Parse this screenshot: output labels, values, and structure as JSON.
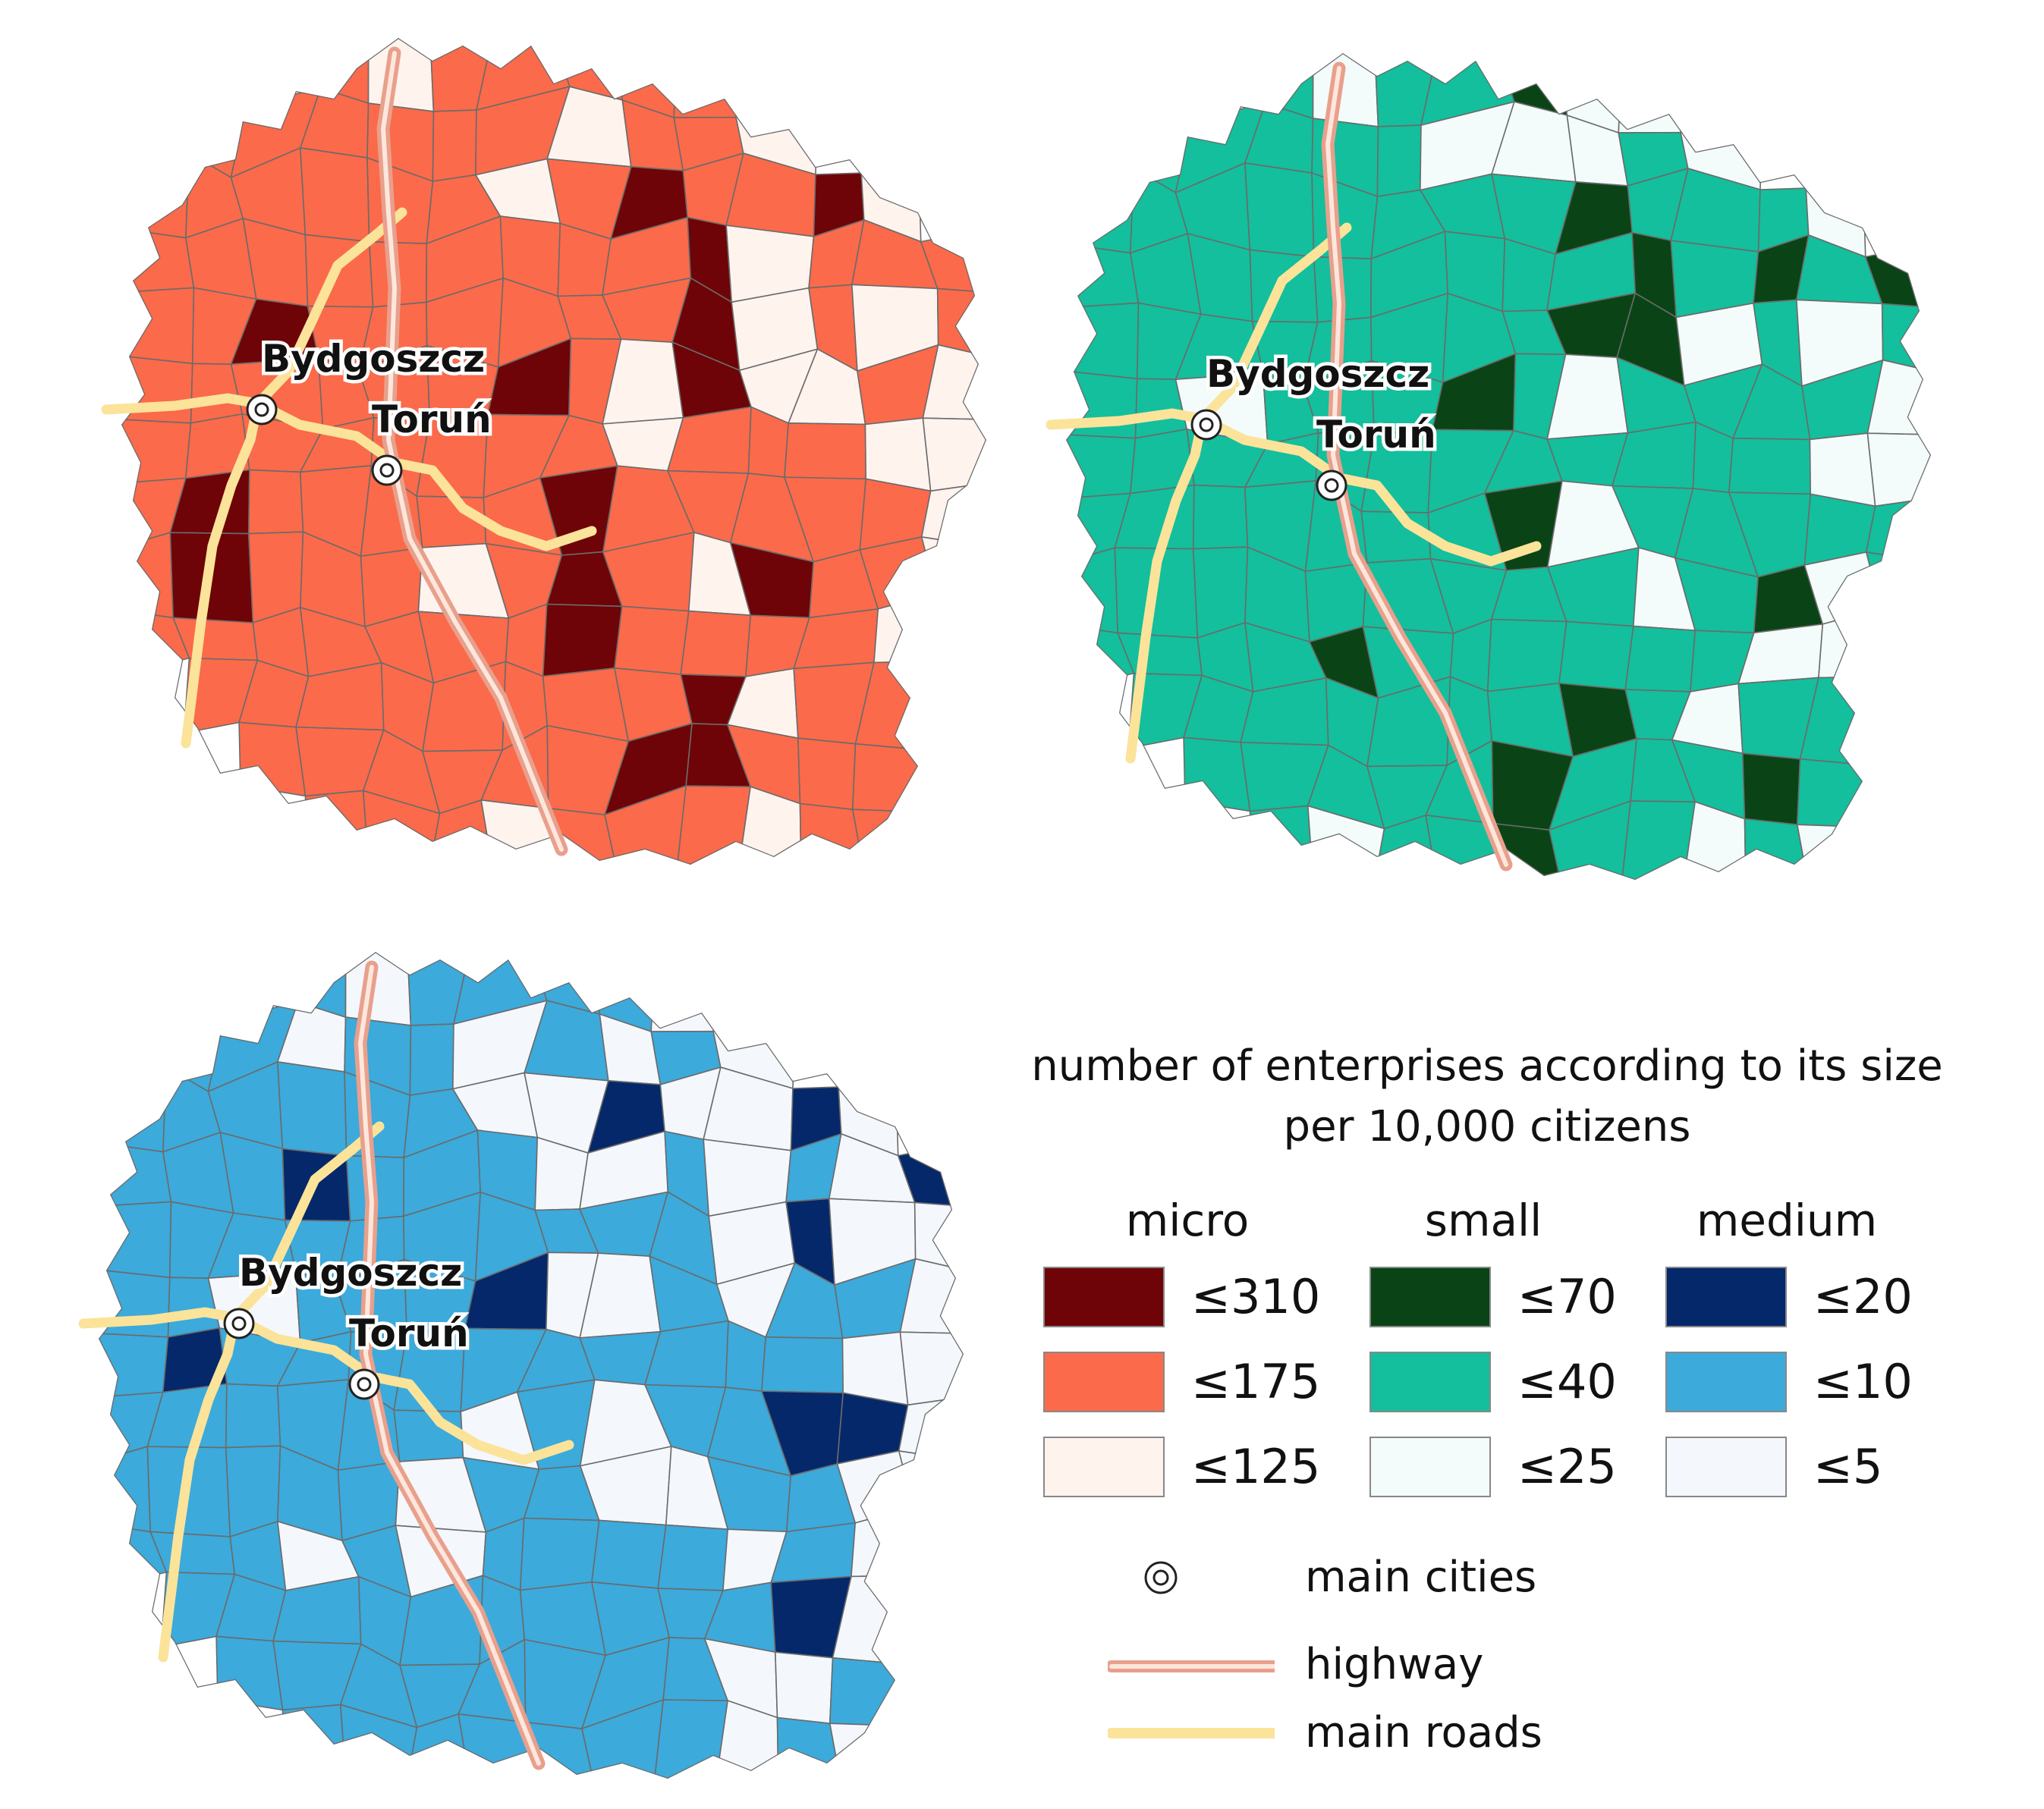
{
  "cities": [
    {
      "name": "Bydgoszcz"
    },
    {
      "name": "Toruń"
    }
  ],
  "maps": [
    {
      "category": "micro",
      "border": "#6b6b6b",
      "palette": {
        "high": "#6e0407",
        "mid": "#fb6a4a",
        "low": "#fff3ee"
      }
    },
    {
      "category": "small",
      "border": "#6b6b6b",
      "palette": {
        "high": "#0a4416",
        "mid": "#13bf9c",
        "low": "#f3fbfb"
      }
    },
    {
      "category": "medium",
      "border": "#6b6b6b",
      "palette": {
        "high": "#05286a",
        "mid": "#3caadb",
        "low": "#f4f7fc"
      }
    }
  ],
  "legend": {
    "title_line1": "number of enterprises according to its size",
    "title_line2": "per 10,000 citizens",
    "categories": [
      {
        "name": "micro",
        "classes": [
          {
            "label": "≤310",
            "color": "#6e0407"
          },
          {
            "label": "≤175",
            "color": "#fb6a4a"
          },
          {
            "label": "≤125",
            "color": "#fff3ee"
          }
        ]
      },
      {
        "name": "small",
        "classes": [
          {
            "label": "≤70",
            "color": "#0a4416"
          },
          {
            "label": "≤40",
            "color": "#13bf9c"
          },
          {
            "label": "≤25",
            "color": "#f3fbfb"
          }
        ]
      },
      {
        "name": "medium",
        "classes": [
          {
            "label": "≤20",
            "color": "#05286a"
          },
          {
            "label": "≤10",
            "color": "#3caadb"
          },
          {
            "label": "≤5",
            "color": "#f4f7fc"
          }
        ]
      }
    ],
    "symbols": {
      "main_cities": "main cities",
      "highway": "highway",
      "main_roads": "main roads"
    }
  },
  "colors": {
    "highway_outer": "#e8a08c",
    "highway_inner": "#fde7dc",
    "main_road": "#fbe39a"
  }
}
